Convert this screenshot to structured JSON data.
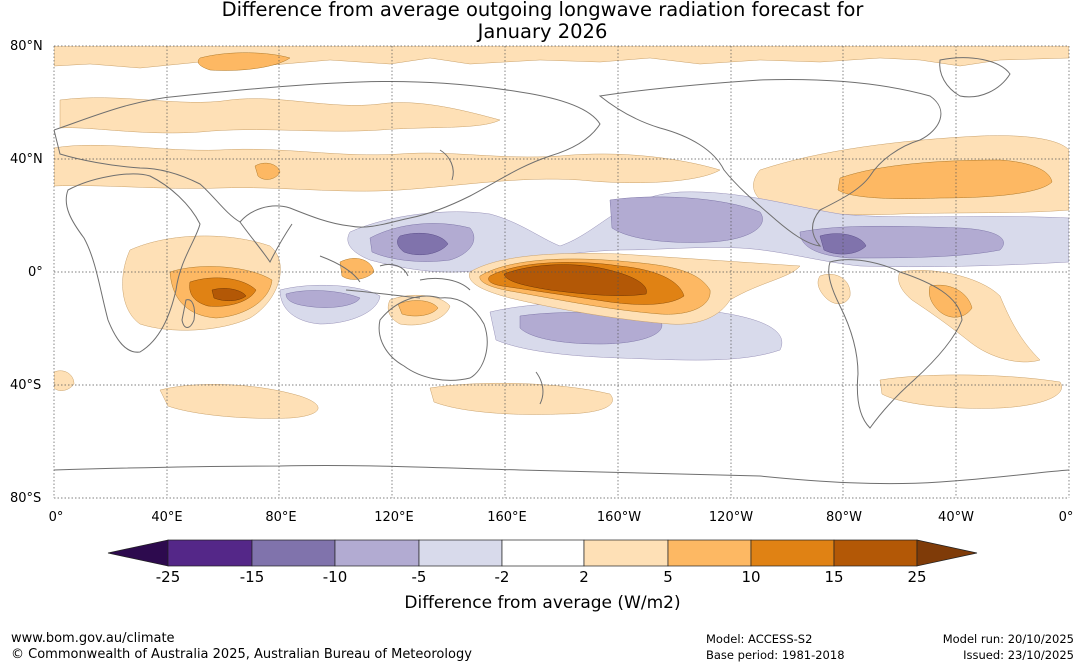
{
  "title": {
    "line1": "Difference from average outgoing longwave radiation forecast for",
    "line2": "January 2026"
  },
  "lat_labels": [
    "80°N",
    "40°N",
    "0°",
    "40°S",
    "80°S"
  ],
  "lon_labels": [
    "0°",
    "40°E",
    "80°E",
    "120°E",
    "160°E",
    "160°W",
    "120°W",
    "80°W",
    "40°W",
    "0°"
  ],
  "colorbar": {
    "ticks": [
      "-25",
      "-15",
      "-10",
      "-5",
      "-2",
      "2",
      "5",
      "10",
      "15",
      "25"
    ],
    "label": "Difference from average (W/m2)",
    "colors": {
      "below_min": "#2d0a4e",
      "neg_25_15": "#542788",
      "neg_15_10": "#8073ac",
      "neg_10_5": "#b2abd2",
      "neg_5_2": "#d8daeb",
      "neutral": "#ffffff",
      "pos_2_5": "#fee0b6",
      "pos_5_10": "#fdb863",
      "pos_10_15": "#e08214",
      "pos_15_25": "#b35806",
      "above_max": "#7f3b08"
    }
  },
  "footer": {
    "url": "www.bom.gov.au/climate",
    "copyright": "© Commonwealth of Australia 2025, Australian Bureau of Meteorology",
    "model": "Model: ACCESS-S2",
    "base_period": "Base period: 1981-2018",
    "model_run": "Model run: 20/10/2025",
    "issued": "Issued: 23/10/2025"
  }
}
